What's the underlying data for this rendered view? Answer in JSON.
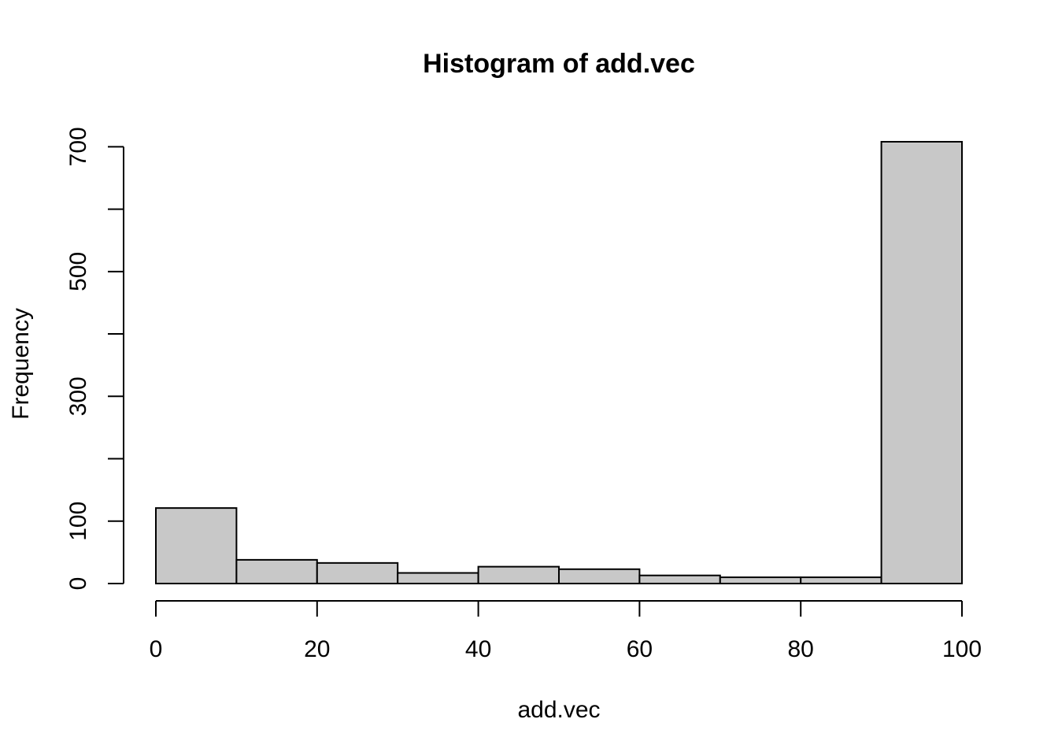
{
  "chart_data": {
    "type": "bar",
    "title": "Histogram of add.vec",
    "xlabel": "add.vec",
    "ylabel": "Frequency",
    "bins": [
      {
        "from": 0,
        "to": 10,
        "count": 121
      },
      {
        "from": 10,
        "to": 20,
        "count": 38
      },
      {
        "from": 20,
        "to": 30,
        "count": 33
      },
      {
        "from": 30,
        "to": 40,
        "count": 17
      },
      {
        "from": 40,
        "to": 50,
        "count": 27
      },
      {
        "from": 50,
        "to": 60,
        "count": 23
      },
      {
        "from": 60,
        "to": 70,
        "count": 13
      },
      {
        "from": 70,
        "to": 80,
        "count": 10
      },
      {
        "from": 80,
        "to": 90,
        "count": 10
      },
      {
        "from": 90,
        "to": 100,
        "count": 708
      }
    ],
    "xlim": [
      0,
      100
    ],
    "ylim": [
      0,
      708
    ],
    "x_ticks": [
      0,
      20,
      40,
      60,
      80,
      100
    ],
    "x_tick_labels": [
      "0",
      "20",
      "40",
      "60",
      "80",
      "100"
    ],
    "y_ticks": [
      0,
      100,
      200,
      300,
      400,
      500,
      600,
      700
    ],
    "y_tick_labels": [
      "0",
      "100",
      "",
      "300",
      "",
      "500",
      "",
      "700"
    ],
    "grid": false,
    "legend": "none",
    "colors": {
      "bar_fill": "#c8c8c8",
      "bar_stroke": "#000000",
      "axis": "#000000",
      "background": "#ffffff"
    }
  }
}
